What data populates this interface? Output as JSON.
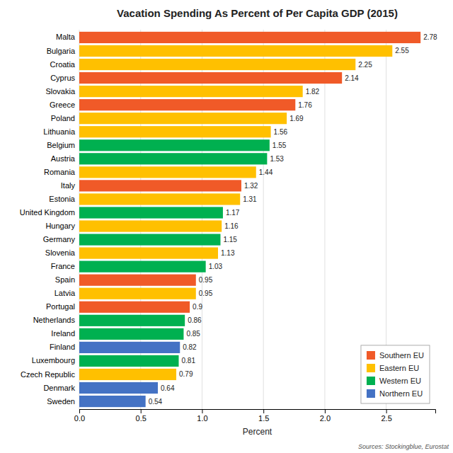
{
  "chart_data": {
    "type": "bar",
    "orientation": "horizontal",
    "title": "Vacation Spending As Percent of Per Capita GDP (2015)",
    "xlabel": "Percent",
    "annotations": [
      "Sources: Stockingblue, Eurostat"
    ],
    "categories": [
      "Malta",
      "Bulgaria",
      "Croatia",
      "Cyprus",
      "Slovakia",
      "Greece",
      "Poland",
      "Lithuania",
      "Belgium",
      "Austria",
      "Romania",
      "Italy",
      "Estonia",
      "United Kingdom",
      "Hungary",
      "Germany",
      "Slovenia",
      "France",
      "Spain",
      "Latvia",
      "Portugal",
      "Netherlands",
      "Ireland",
      "Finland",
      "Luxembourg",
      "Czech Republic",
      "Denmark",
      "Sweden"
    ],
    "series": [
      {
        "name": "Southern EU",
        "color": "#F05A28",
        "values": [
          2.78,
          null,
          null,
          2.14,
          null,
          1.76,
          null,
          null,
          null,
          null,
          null,
          1.32,
          null,
          null,
          null,
          null,
          null,
          null,
          0.95,
          null,
          0.9,
          null,
          null,
          null,
          null,
          null,
          null,
          null
        ]
      },
      {
        "name": "Eastern EU",
        "color": "#FFC000",
        "values": [
          null,
          2.55,
          2.25,
          null,
          1.82,
          null,
          1.69,
          1.56,
          null,
          null,
          1.44,
          null,
          1.31,
          null,
          1.16,
          null,
          1.13,
          null,
          null,
          0.95,
          null,
          null,
          null,
          null,
          null,
          0.79,
          null,
          null
        ]
      },
      {
        "name": "Western EU",
        "color": "#00B050",
        "values": [
          null,
          null,
          null,
          null,
          null,
          null,
          null,
          null,
          1.55,
          1.53,
          null,
          null,
          null,
          1.17,
          null,
          1.15,
          null,
          1.03,
          null,
          null,
          null,
          0.86,
          0.85,
          null,
          0.81,
          null,
          null,
          null
        ]
      },
      {
        "name": "Northern EU",
        "color": "#4472C4",
        "values": [
          null,
          null,
          null,
          null,
          null,
          null,
          null,
          null,
          null,
          null,
          null,
          null,
          null,
          null,
          null,
          null,
          null,
          null,
          null,
          null,
          null,
          null,
          null,
          0.82,
          null,
          null,
          0.64,
          0.54
        ]
      }
    ],
    "xlim": [
      0,
      2.9
    ],
    "xticks": [
      {
        "value": 0,
        "label": "0.0"
      },
      0.5,
      {
        "value": 1,
        "label": "1.0"
      },
      1.5,
      {
        "value": 2,
        "label": "2.0"
      },
      2.5
    ],
    "grid": true,
    "data_labels": true,
    "legend": "lower right"
  }
}
